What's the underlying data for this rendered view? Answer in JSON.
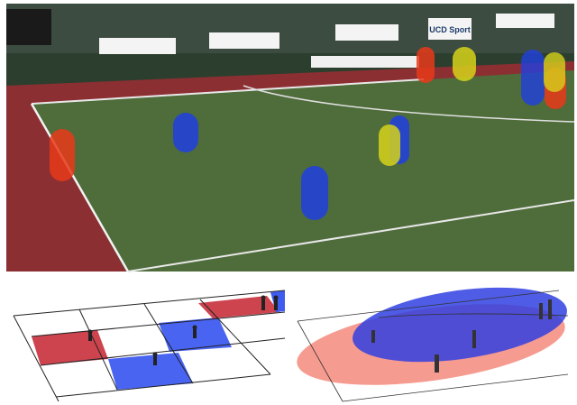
{
  "photo": {
    "banner": "UCD Sport"
  }
}
